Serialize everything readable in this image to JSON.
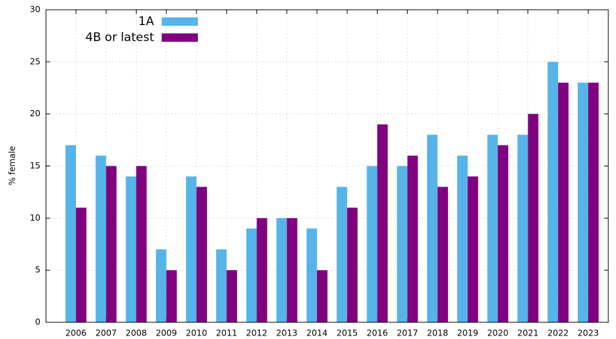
{
  "chart_data": {
    "type": "bar",
    "y_label": "% female",
    "categories": [
      "2006",
      "2007",
      "2008",
      "2009",
      "2010",
      "2011",
      "2012",
      "2013",
      "2014",
      "2015",
      "2016",
      "2017",
      "2018",
      "2019",
      "2020",
      "2021",
      "2022",
      "2023"
    ],
    "series": [
      {
        "name": "1A",
        "color": "#56b4e9",
        "values": [
          17,
          16,
          14,
          7,
          14,
          7,
          9,
          10,
          9,
          13,
          15,
          15,
          18,
          16,
          18,
          18,
          25,
          23
        ]
      },
      {
        "name": "4B or latest",
        "color": "#800080",
        "values": [
          11,
          15,
          15,
          5,
          13,
          5,
          10,
          10,
          5,
          11,
          19,
          16,
          13,
          14,
          17,
          20,
          23,
          23
        ]
      }
    ],
    "ylim": [
      0,
      30
    ],
    "yticks": [
      0,
      5,
      10,
      15,
      20,
      25,
      30
    ],
    "grid": true,
    "legend": "top-left"
  }
}
